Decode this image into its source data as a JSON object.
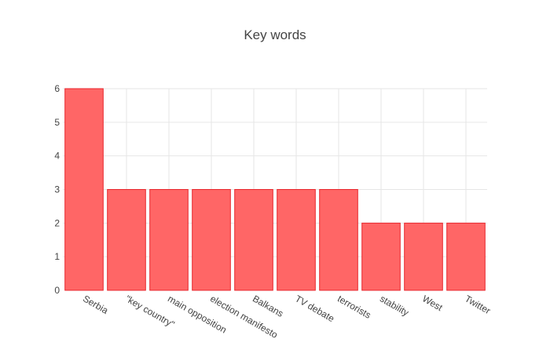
{
  "chart_data": {
    "type": "bar",
    "title": "Key words",
    "xlabel": "",
    "ylabel": "",
    "categories": [
      "Serbia",
      "\"key country\"",
      "main opposition",
      "election manifesto",
      "Balkans",
      "TV debate",
      "terrorists",
      "stability",
      "West",
      "Twitter"
    ],
    "values": [
      6,
      3,
      3,
      3,
      3,
      3,
      3,
      2,
      2,
      2
    ],
    "ylim": [
      0,
      6
    ],
    "yticks": [
      0,
      1,
      2,
      3,
      4,
      5,
      6
    ],
    "grid": true,
    "legend": "none",
    "colors": {
      "bar_fill": "#ff6666",
      "bar_stroke": "#e8262c",
      "grid": "#e6e6e6",
      "text": "#444444"
    }
  }
}
